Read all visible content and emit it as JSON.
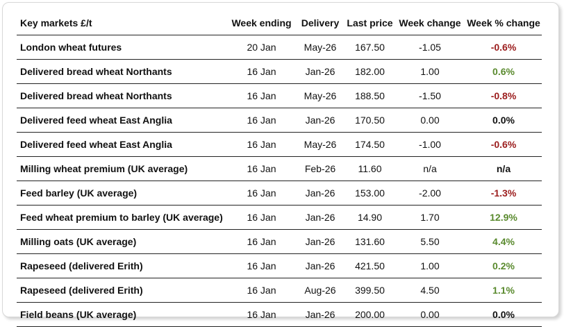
{
  "table": {
    "headers": [
      "Key markets £/t",
      "Week ending",
      "Delivery",
      "Last price",
      "Week change",
      "Week % change"
    ],
    "rows": [
      {
        "market": "London wheat futures",
        "week_ending": "20 Jan",
        "delivery": "May-26",
        "last_price": "167.50",
        "week_change": "-1.05",
        "pct_change": "-0.6%",
        "trend": "neg"
      },
      {
        "market": "Delivered bread wheat Northants",
        "week_ending": "16 Jan",
        "delivery": "Jan-26",
        "last_price": "182.00",
        "week_change": "1.00",
        "pct_change": "0.6%",
        "trend": "pos"
      },
      {
        "market": "Delivered bread wheat Northants",
        "week_ending": "16 Jan",
        "delivery": "May-26",
        "last_price": "188.50",
        "week_change": "-1.50",
        "pct_change": "-0.8%",
        "trend": "neg"
      },
      {
        "market": "Delivered feed wheat East Anglia",
        "week_ending": "16 Jan",
        "delivery": "Jan-26",
        "last_price": "170.50",
        "week_change": "0.00",
        "pct_change": "0.0%",
        "trend": "zero"
      },
      {
        "market": "Delivered feed wheat East Anglia",
        "week_ending": "16 Jan",
        "delivery": "May-26",
        "last_price": "174.50",
        "week_change": "-1.00",
        "pct_change": "-0.6%",
        "trend": "neg"
      },
      {
        "market": "Milling wheat premium (UK average)",
        "week_ending": "16 Jan",
        "delivery": "Feb-26",
        "last_price": "11.60",
        "week_change": "n/a",
        "pct_change": "n/a",
        "trend": "na"
      },
      {
        "market": "Feed barley (UK average)",
        "week_ending": "16 Jan",
        "delivery": "Jan-26",
        "last_price": "153.00",
        "week_change": "-2.00",
        "pct_change": "-1.3%",
        "trend": "neg"
      },
      {
        "market": "Feed wheat premium to barley (UK average)",
        "week_ending": "16 Jan",
        "delivery": "Jan-26",
        "last_price": "14.90",
        "week_change": "1.70",
        "pct_change": "12.9%",
        "trend": "pos"
      },
      {
        "market": "Milling oats (UK average)",
        "week_ending": "16 Jan",
        "delivery": "Jan-26",
        "last_price": "131.60",
        "week_change": "5.50",
        "pct_change": "4.4%",
        "trend": "pos"
      },
      {
        "market": "Rapeseed (delivered Erith)",
        "week_ending": "16 Jan",
        "delivery": "Jan-26",
        "last_price": "421.50",
        "week_change": "1.00",
        "pct_change": "0.2%",
        "trend": "pos"
      },
      {
        "market": "Rapeseed (delivered Erith)",
        "week_ending": "16 Jan",
        "delivery": "Aug-26",
        "last_price": "399.50",
        "week_change": "4.50",
        "pct_change": "1.1%",
        "trend": "pos"
      },
      {
        "market": "Field beans (UK average)",
        "week_ending": "16 Jan",
        "delivery": "Jan-26",
        "last_price": "200.00",
        "week_change": "0.00",
        "pct_change": "0.0%",
        "trend": "zero"
      }
    ]
  },
  "colors": {
    "negative": "#9b1c1c",
    "positive": "#5a8a2e",
    "neutral": "#111111"
  }
}
